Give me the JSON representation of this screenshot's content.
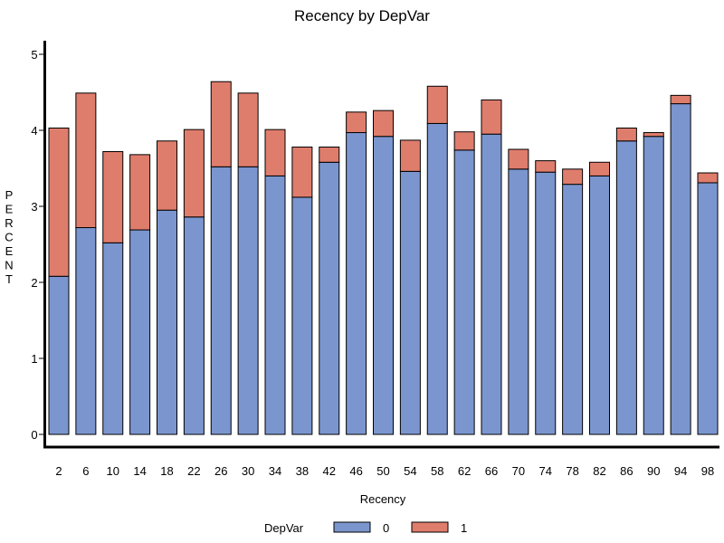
{
  "chart_data": {
    "type": "bar",
    "stacked": true,
    "title": "Recency by DepVar",
    "xlabel": "Recency",
    "ylabel": "PERCENT",
    "ylim": [
      0,
      5
    ],
    "yticks": [
      "0",
      "1",
      "2",
      "3",
      "4",
      "5"
    ],
    "categories": [
      "2",
      "6",
      "10",
      "14",
      "18",
      "22",
      "26",
      "30",
      "34",
      "38",
      "42",
      "46",
      "50",
      "54",
      "58",
      "62",
      "66",
      "70",
      "74",
      "78",
      "82",
      "86",
      "90",
      "94",
      "98"
    ],
    "series": [
      {
        "name": "0",
        "color": "#7b96cf",
        "values": [
          2.08,
          2.72,
          2.52,
          2.69,
          2.95,
          2.86,
          3.52,
          3.52,
          3.4,
          3.12,
          3.58,
          3.97,
          3.92,
          3.46,
          4.09,
          3.74,
          3.95,
          3.49,
          3.45,
          3.29,
          3.4,
          3.86,
          3.92,
          4.35,
          3.31
        ]
      },
      {
        "name": "1",
        "color": "#df7d6d",
        "values": [
          1.95,
          1.77,
          1.2,
          0.99,
          0.91,
          1.15,
          1.12,
          0.97,
          0.61,
          0.66,
          0.2,
          0.27,
          0.34,
          0.41,
          0.49,
          0.24,
          0.45,
          0.26,
          0.15,
          0.2,
          0.18,
          0.17,
          0.05,
          0.11,
          0.13
        ]
      }
    ],
    "legend": {
      "title": "DepVar",
      "position": "bottom-center"
    },
    "grid": false
  }
}
